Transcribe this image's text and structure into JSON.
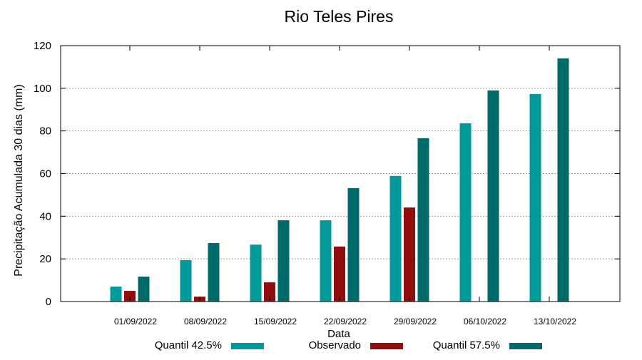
{
  "chart_data": {
    "type": "bar",
    "title": "Rio Teles Pires",
    "xlabel": "Data",
    "ylabel": "Precipitação Acumulada 30 dias (mm)",
    "ylim": [
      0,
      120
    ],
    "yticks": [
      0,
      20,
      40,
      60,
      80,
      100,
      120
    ],
    "grid": true,
    "legend_placement": "bottom",
    "categories": [
      "01/09/2022",
      "08/09/2022",
      "15/09/2022",
      "22/09/2022",
      "29/09/2022",
      "06/10/2022",
      "13/10/2022"
    ],
    "series": [
      {
        "name": "Quantil 42.5%",
        "color": "#009a9a",
        "values": [
          7.0,
          19.4,
          26.7,
          38.1,
          58.9,
          83.6,
          97.3
        ]
      },
      {
        "name": "Observado",
        "color": "#930d0d",
        "values": [
          5.0,
          2.3,
          9.0,
          25.8,
          44.1,
          null,
          null
        ]
      },
      {
        "name": "Quantil 57.5%",
        "color": "#006a6a",
        "values": [
          11.7,
          27.4,
          38.1,
          53.2,
          76.6,
          99.0,
          114.0
        ]
      }
    ]
  }
}
